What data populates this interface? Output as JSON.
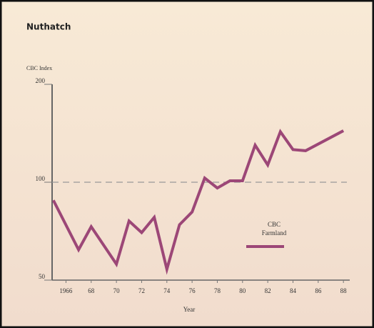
{
  "chart_data": {
    "type": "line",
    "title": "Nuthatch",
    "y_label": "CBC Index",
    "x_label": "Year",
    "x": [
      1965,
      1967,
      1968,
      1970,
      1971,
      1972,
      1973,
      1974,
      1975,
      1976,
      1977,
      1978,
      1979,
      1980,
      1981,
      1982,
      1983,
      1984,
      1985,
      1988
    ],
    "series": [
      {
        "name": "CBC Farmland",
        "color": "#9c4777",
        "values": [
          88,
          62,
          73,
          56,
          76,
          70,
          78,
          54,
          74,
          81,
          103,
          96,
          101,
          101,
          130,
          113,
          143,
          126,
          125,
          144
        ]
      }
    ],
    "xlim": [
      1964.9,
      1988.5
    ],
    "xticks": [
      {
        "value": 1966,
        "label": "1966"
      },
      {
        "value": 1968,
        "label": "68"
      },
      {
        "value": 1970,
        "label": "70"
      },
      {
        "value": 1972,
        "label": "72"
      },
      {
        "value": 1974,
        "label": "74"
      },
      {
        "value": 1976,
        "label": "76"
      },
      {
        "value": 1978,
        "label": "78"
      },
      {
        "value": 1980,
        "label": "80"
      },
      {
        "value": 1982,
        "label": "82"
      },
      {
        "value": 1984,
        "label": "84"
      },
      {
        "value": 1986,
        "label": "86"
      },
      {
        "value": 1988,
        "label": "88"
      }
    ],
    "ylim": [
      50,
      200
    ],
    "yticks": [
      50,
      100,
      200
    ],
    "log_scale_y": true,
    "reference_line": 100
  }
}
